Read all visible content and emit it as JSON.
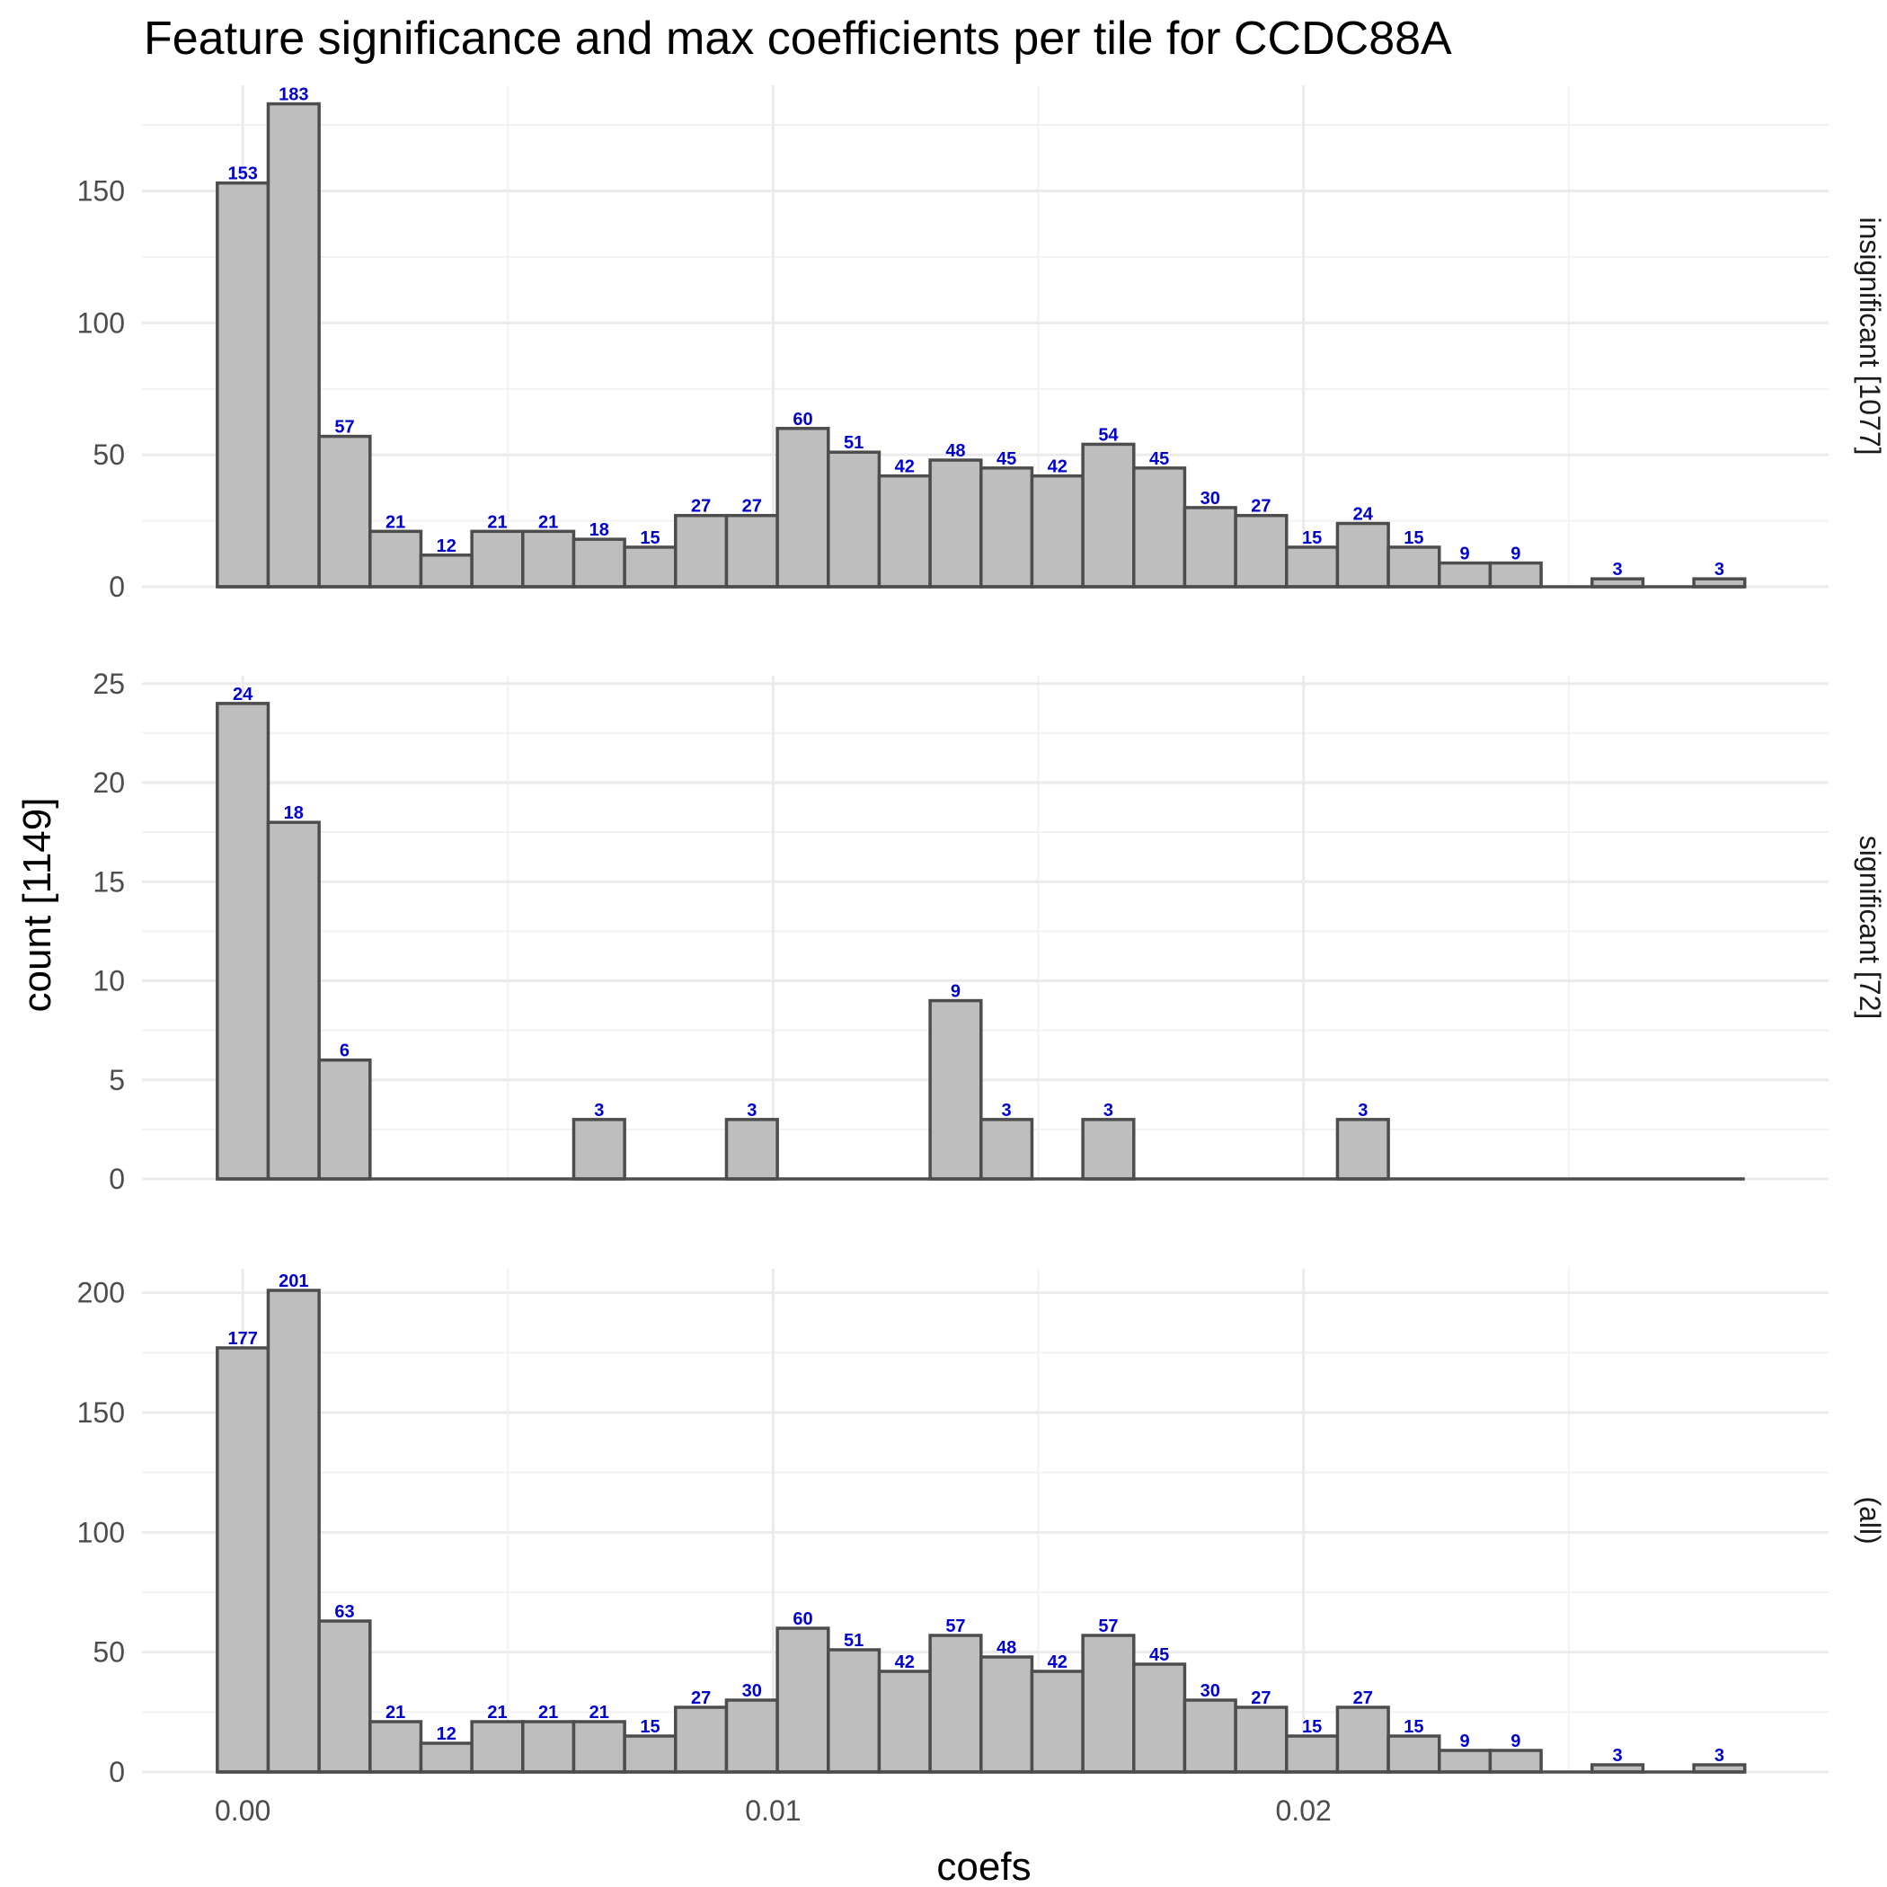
{
  "title": "Feature significance and max coefficients per tile for CCDC88A",
  "chart_data": {
    "type": "bar",
    "title": "Feature significance and max coefficients per tile for CCDC88A",
    "xlabel": "coefs",
    "ylabel": "count [1149]",
    "grid": true,
    "bar_fill": "#bebebe",
    "bar_edge": "#4d4d4d",
    "label_color": "#0000cc",
    "bin_width": 0.00096,
    "x_start": -0.00048,
    "xlim": [
      -0.0019,
      0.0299
    ],
    "x_ticks": [
      0.0,
      0.01,
      0.02
    ],
    "x_tick_labels": [
      "0.00",
      "0.01",
      "0.02"
    ],
    "panels": [
      {
        "strip": "insignificant [1077]",
        "ylim": [
          0,
          190
        ],
        "y_ticks": [
          0,
          50,
          100,
          150
        ],
        "values": [
          153,
          183,
          57,
          21,
          12,
          21,
          21,
          18,
          15,
          27,
          27,
          60,
          51,
          42,
          48,
          45,
          42,
          54,
          45,
          30,
          27,
          15,
          24,
          15,
          9,
          9,
          0,
          3,
          0,
          3
        ]
      },
      {
        "strip": "significant [72]",
        "ylim": [
          0,
          25.4
        ],
        "y_ticks": [
          0,
          5,
          10,
          15,
          20,
          25
        ],
        "values": [
          24,
          18,
          6,
          0,
          0,
          0,
          0,
          3,
          0,
          0,
          3,
          0,
          0,
          0,
          9,
          3,
          0,
          3,
          0,
          0,
          0,
          0,
          3,
          0,
          0,
          0,
          0,
          0,
          0,
          0
        ]
      },
      {
        "strip": "(all)",
        "ylim": [
          0,
          210
        ],
        "y_ticks": [
          0,
          50,
          100,
          150,
          200
        ],
        "values": [
          177,
          201,
          63,
          21,
          12,
          21,
          21,
          21,
          15,
          27,
          30,
          60,
          51,
          42,
          57,
          48,
          42,
          57,
          45,
          30,
          27,
          15,
          27,
          15,
          9,
          9,
          0,
          3,
          0,
          3
        ]
      }
    ]
  }
}
